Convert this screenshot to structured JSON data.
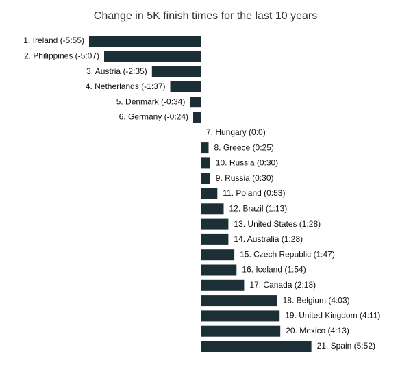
{
  "chart_data": {
    "type": "bar",
    "orientation": "horizontal",
    "title": "Change in 5K finish times for the last 10 years",
    "unit": "seconds",
    "bar_color": "#1c2f36",
    "categories": [
      "1. Ireland (-5:55)",
      "2. Philippines (-5:07)",
      "3. Austria (-2:35)",
      "4. Netherlands (-1:37)",
      "5. Denmark (-0:34)",
      "6. Germany (-0:24)",
      "7. Hungary (0:0)",
      "8. Greece (0:25)",
      "10. Russia (0:30)",
      "9. Russia (0:30)",
      "11. Poland (0:53)",
      "12. Brazil (1:13)",
      "13. United States (1:28)",
      "14. Australia (1:28)",
      "15. Czech Republic (1:47)",
      "16. Iceland (1:54)",
      "17. Canada (2:18)",
      "18. Belgium (4:03)",
      "19. United Kingdom (4:11)",
      "20. Mexico (4:13)",
      "21. Spain (5:52)"
    ],
    "values": [
      -355,
      -307,
      -155,
      -97,
      -34,
      -24,
      0,
      25,
      30,
      30,
      53,
      73,
      88,
      88,
      107,
      114,
      138,
      243,
      251,
      253,
      352
    ],
    "xlim": [
      -355,
      352
    ]
  }
}
